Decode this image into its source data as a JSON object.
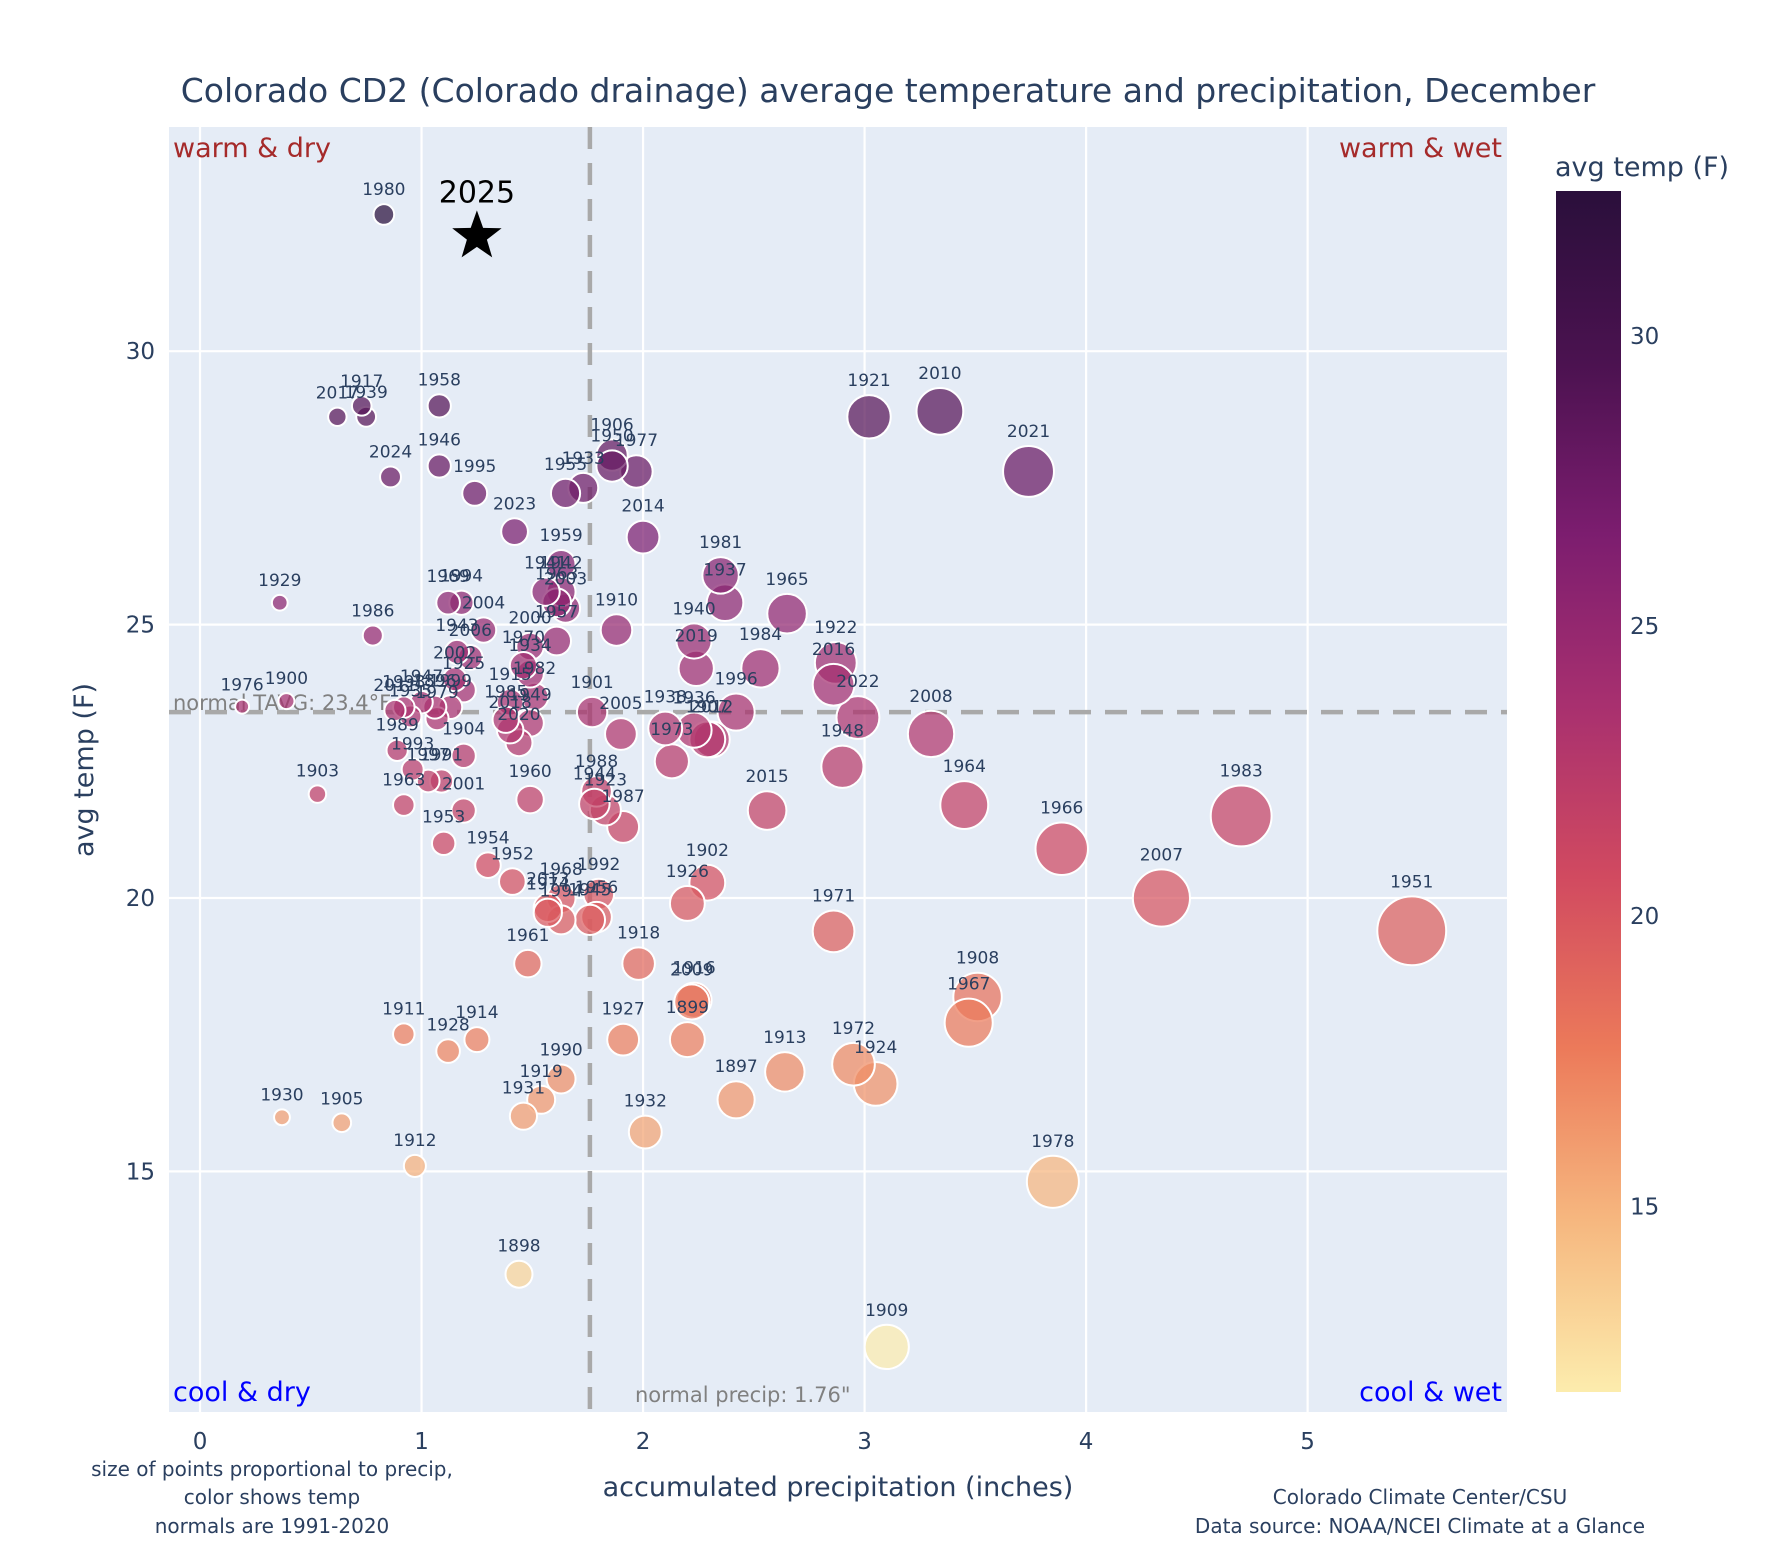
{
  "chart_data": {
    "type": "scatter",
    "title": "Colorado CD2 (Colorado drainage) average temperature and precipitation, December",
    "xlabel": "accumulated precipitation (inches)",
    "ylabel": "avg temp (F)",
    "xlim": [
      -0.14,
      5.9
    ],
    "ylim": [
      10.6,
      34.1
    ],
    "x_ticks": [
      0,
      1,
      2,
      3,
      4,
      5
    ],
    "y_ticks": [
      15,
      20,
      25,
      30
    ],
    "grid": true,
    "colorbar": {
      "title": "avg temp (F)",
      "range": [
        11.8,
        32.5
      ],
      "ticks": [
        15,
        20,
        25,
        30
      ],
      "colorscale": [
        "#fcecad",
        "#f6b77f",
        "#ec7a5a",
        "#d14a60",
        "#a8306f",
        "#7c1d6f",
        "#4b1250",
        "#2a0f3b"
      ]
    },
    "size_encoding": "precip",
    "normal_precip": 1.76,
    "normal_tavg": 23.4,
    "normal_precip_label": "normal precip: 1.76\"",
    "normal_tavg_label": "normal TAVG: 23.4°F",
    "quadrant_labels": {
      "top_left": "warm & dry",
      "top_right": "warm & wet",
      "bottom_left": "cool & dry",
      "bottom_right": "cool & wet"
    },
    "highlight": {
      "label": "2025",
      "precip": 1.25,
      "temp": 32.1,
      "marker": "star"
    },
    "points": [
      {
        "year": "1980",
        "precip": 0.83,
        "temp": 32.5
      },
      {
        "year": "2017",
        "precip": 0.62,
        "temp": 28.8
      },
      {
        "year": "1917",
        "precip": 0.73,
        "temp": 29.0
      },
      {
        "year": "1939",
        "precip": 0.75,
        "temp": 28.8
      },
      {
        "year": "1958",
        "precip": 1.08,
        "temp": 29.0
      },
      {
        "year": "2024",
        "precip": 0.86,
        "temp": 27.7
      },
      {
        "year": "1946",
        "precip": 1.08,
        "temp": 27.9
      },
      {
        "year": "1995",
        "precip": 1.24,
        "temp": 27.4
      },
      {
        "year": "1955",
        "precip": 1.65,
        "temp": 27.4
      },
      {
        "year": "1933",
        "precip": 1.73,
        "temp": 27.5
      },
      {
        "year": "1906",
        "precip": 1.86,
        "temp": 28.1
      },
      {
        "year": "1950",
        "precip": 1.86,
        "temp": 27.9
      },
      {
        "year": "1977",
        "precip": 1.97,
        "temp": 27.8
      },
      {
        "year": "2014",
        "precip": 2.0,
        "temp": 26.6
      },
      {
        "year": "2023",
        "precip": 1.42,
        "temp": 26.7
      },
      {
        "year": "1959",
        "precip": 1.63,
        "temp": 26.1
      },
      {
        "year": "1921",
        "precip": 3.02,
        "temp": 28.8
      },
      {
        "year": "2010",
        "precip": 3.34,
        "temp": 28.9
      },
      {
        "year": "2021",
        "precip": 3.74,
        "temp": 27.8
      },
      {
        "year": "1981",
        "precip": 2.35,
        "temp": 25.9
      },
      {
        "year": "1937",
        "precip": 2.37,
        "temp": 25.4
      },
      {
        "year": "1965",
        "precip": 2.65,
        "temp": 25.2
      },
      {
        "year": "1940",
        "precip": 2.23,
        "temp": 24.7
      },
      {
        "year": "2019",
        "precip": 2.24,
        "temp": 24.2
      },
      {
        "year": "1984",
        "precip": 2.53,
        "temp": 24.2
      },
      {
        "year": "1996",
        "precip": 2.42,
        "temp": 23.4
      },
      {
        "year": "1922",
        "precip": 2.87,
        "temp": 24.3
      },
      {
        "year": "2016",
        "precip": 2.86,
        "temp": 23.9
      },
      {
        "year": "2022",
        "precip": 2.97,
        "temp": 23.3
      },
      {
        "year": "2008",
        "precip": 3.3,
        "temp": 23.0
      },
      {
        "year": "1948",
        "precip": 2.9,
        "temp": 22.4
      },
      {
        "year": "2015",
        "precip": 2.56,
        "temp": 21.6
      },
      {
        "year": "1964",
        "precip": 3.45,
        "temp": 21.7
      },
      {
        "year": "1966",
        "precip": 3.89,
        "temp": 20.9
      },
      {
        "year": "2007",
        "precip": 4.34,
        "temp": 20.0
      },
      {
        "year": "1983",
        "precip": 4.7,
        "temp": 21.5
      },
      {
        "year": "1951",
        "precip": 5.47,
        "temp": 19.4
      },
      {
        "year": "1929",
        "precip": 0.36,
        "temp": 25.4
      },
      {
        "year": "1986",
        "precip": 0.78,
        "temp": 24.8
      },
      {
        "year": "1976",
        "precip": 0.19,
        "temp": 23.5
      },
      {
        "year": "1900",
        "precip": 0.39,
        "temp": 23.6
      },
      {
        "year": "1903",
        "precip": 0.53,
        "temp": 21.9
      },
      {
        "year": "1969",
        "precip": 1.12,
        "temp": 25.4
      },
      {
        "year": "1994",
        "precip": 1.18,
        "temp": 25.4
      },
      {
        "year": "2004",
        "precip": 1.28,
        "temp": 24.9
      },
      {
        "year": "1943",
        "precip": 1.16,
        "temp": 24.5
      },
      {
        "year": "2006",
        "precip": 1.22,
        "temp": 24.4
      },
      {
        "year": "2002",
        "precip": 1.15,
        "temp": 24.0
      },
      {
        "year": "1925",
        "precip": 1.19,
        "temp": 23.8
      },
      {
        "year": "1910",
        "precip": 1.88,
        "temp": 24.9
      },
      {
        "year": "1957",
        "precip": 1.61,
        "temp": 24.7
      },
      {
        "year": "2000",
        "precip": 1.49,
        "temp": 24.6
      },
      {
        "year": "1941",
        "precip": 1.56,
        "temp": 25.6
      },
      {
        "year": "1942",
        "precip": 1.63,
        "temp": 25.6
      },
      {
        "year": "1963b",
        "precip": 1.61,
        "temp": 25.4
      },
      {
        "year": "2003",
        "precip": 1.65,
        "temp": 25.3
      },
      {
        "year": "1970",
        "precip": 1.46,
        "temp": 24.25
      },
      {
        "year": "1934",
        "precip": 1.49,
        "temp": 24.1
      },
      {
        "year": "1901",
        "precip": 1.77,
        "temp": 23.4
      },
      {
        "year": "2005",
        "precip": 1.9,
        "temp": 23.0
      },
      {
        "year": "1938",
        "precip": 2.1,
        "temp": 23.1
      },
      {
        "year": "1936",
        "precip": 2.23,
        "temp": 23.07
      },
      {
        "year": "1907",
        "precip": 2.29,
        "temp": 22.9
      },
      {
        "year": "2012",
        "precip": 2.31,
        "temp": 22.9
      },
      {
        "year": "1973",
        "precip": 2.13,
        "temp": 22.5
      },
      {
        "year": "2011",
        "precip": 0.88,
        "temp": 23.43
      },
      {
        "year": "1998",
        "precip": 0.92,
        "temp": 23.49
      },
      {
        "year": "1947",
        "precip": 1.0,
        "temp": 23.58
      },
      {
        "year": "1979",
        "precip": 1.07,
        "temp": 23.28
      },
      {
        "year": "1999",
        "precip": 1.13,
        "temp": 23.49
      },
      {
        "year": "1896",
        "precip": 1.06,
        "temp": 23.49
      },
      {
        "year": "1935",
        "precip": 0.95,
        "temp": 23.32
      },
      {
        "year": "1989",
        "precip": 0.89,
        "temp": 22.7
      },
      {
        "year": "1993",
        "precip": 0.96,
        "temp": 22.35
      },
      {
        "year": "1997",
        "precip": 1.03,
        "temp": 22.14
      },
      {
        "year": "1991",
        "precip": 1.09,
        "temp": 22.14
      },
      {
        "year": "1904",
        "precip": 1.19,
        "temp": 22.6
      },
      {
        "year": "1963",
        "precip": 0.92,
        "temp": 21.7
      },
      {
        "year": "2001",
        "precip": 1.19,
        "temp": 21.6
      },
      {
        "year": "1953",
        "precip": 1.1,
        "temp": 21.0
      },
      {
        "year": "1915",
        "precip": 1.4,
        "temp": 23.58
      },
      {
        "year": "1982",
        "precip": 1.51,
        "temp": 23.68
      },
      {
        "year": "1985",
        "precip": 1.38,
        "temp": 23.26
      },
      {
        "year": "2018",
        "precip": 1.4,
        "temp": 23.07
      },
      {
        "year": "1949",
        "precip": 1.49,
        "temp": 23.2
      },
      {
        "year": "2020",
        "precip": 1.44,
        "temp": 22.84
      },
      {
        "year": "1960",
        "precip": 1.49,
        "temp": 21.8
      },
      {
        "year": "1988",
        "precip": 1.79,
        "temp": 21.95
      },
      {
        "year": "1944",
        "precip": 1.78,
        "temp": 21.72
      },
      {
        "year": "1923",
        "precip": 1.83,
        "temp": 21.61
      },
      {
        "year": "1987",
        "precip": 1.91,
        "temp": 21.3
      },
      {
        "year": "1954",
        "precip": 1.3,
        "temp": 20.6
      },
      {
        "year": "1952",
        "precip": 1.41,
        "temp": 20.3
      },
      {
        "year": "1902",
        "precip": 2.29,
        "temp": 20.28
      },
      {
        "year": "1926",
        "precip": 2.2,
        "temp": 19.9
      },
      {
        "year": "1968",
        "precip": 1.63,
        "temp": 19.99
      },
      {
        "year": "1992",
        "precip": 1.8,
        "temp": 20.07
      },
      {
        "year": "2013",
        "precip": 1.57,
        "temp": 19.82
      },
      {
        "year": "1974",
        "precip": 1.57,
        "temp": 19.73
      },
      {
        "year": "1994b",
        "precip": 1.63,
        "temp": 19.6
      },
      {
        "year": "1945",
        "precip": 1.76,
        "temp": 19.6
      },
      {
        "year": "1956",
        "precip": 1.79,
        "temp": 19.65
      },
      {
        "year": "1961",
        "precip": 1.48,
        "temp": 18.8
      },
      {
        "year": "1918",
        "precip": 1.98,
        "temp": 18.8
      },
      {
        "year": "1916",
        "precip": 2.23,
        "temp": 18.13
      },
      {
        "year": "1971",
        "precip": 2.86,
        "temp": 19.39
      },
      {
        "year": "2009",
        "precip": 2.22,
        "temp": 18.1
      },
      {
        "year": "1899",
        "precip": 2.2,
        "temp": 17.41
      },
      {
        "year": "1927",
        "precip": 1.91,
        "temp": 17.41
      },
      {
        "year": "1908",
        "precip": 3.51,
        "temp": 18.19
      },
      {
        "year": "1967",
        "precip": 3.47,
        "temp": 17.72
      },
      {
        "year": "1913",
        "precip": 2.64,
        "temp": 16.82
      },
      {
        "year": "1897",
        "precip": 2.42,
        "temp": 16.31
      },
      {
        "year": "1972",
        "precip": 2.95,
        "temp": 16.96
      },
      {
        "year": "1924",
        "precip": 3.05,
        "temp": 16.6
      },
      {
        "year": "1932",
        "precip": 2.01,
        "temp": 15.72
      },
      {
        "year": "1978",
        "precip": 3.85,
        "temp": 14.81
      },
      {
        "year": "1909",
        "precip": 3.1,
        "temp": 11.79
      },
      {
        "year": "1898",
        "precip": 1.44,
        "temp": 13.12
      },
      {
        "year": "1911",
        "precip": 0.92,
        "temp": 17.51
      },
      {
        "year": "1928",
        "precip": 1.12,
        "temp": 17.2
      },
      {
        "year": "1914",
        "precip": 1.25,
        "temp": 17.41
      },
      {
        "year": "1990",
        "precip": 1.63,
        "temp": 16.69
      },
      {
        "year": "1919",
        "precip": 1.54,
        "temp": 16.31
      },
      {
        "year": "1931",
        "precip": 1.46,
        "temp": 16.01
      },
      {
        "year": "1930",
        "precip": 0.37,
        "temp": 15.99
      },
      {
        "year": "1905",
        "precip": 0.64,
        "temp": 15.89
      },
      {
        "year": "1912",
        "precip": 0.97,
        "temp": 15.1
      }
    ]
  },
  "notes": {
    "left": [
      "size of points proportional to precip,",
      "color shows temp",
      "normals are 1991-2020"
    ],
    "right": [
      "Colorado Climate Center/CSU",
      "Data source: NOAA/NCEI Climate at a Glance"
    ]
  }
}
